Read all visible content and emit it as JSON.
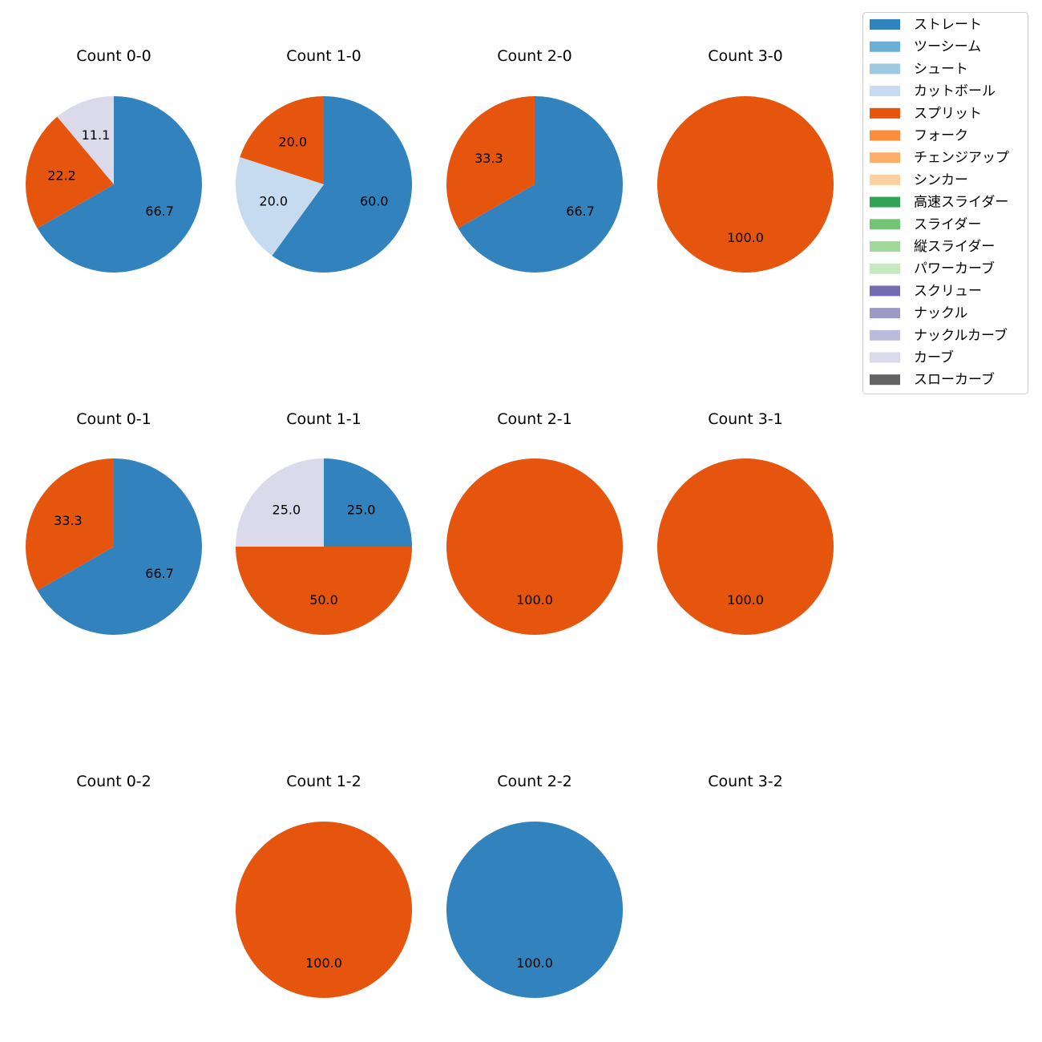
{
  "chart_data": {
    "type": "pie",
    "start_angle_deg": 90,
    "direction": "clockwise",
    "label_format": "percent_one_decimal",
    "legend": {
      "placement": "top-right",
      "entries": [
        {
          "name": "ストレート",
          "color": "#3182bd"
        },
        {
          "name": "ツーシーム",
          "color": "#6baed6"
        },
        {
          "name": "シュート",
          "color": "#9ecae1"
        },
        {
          "name": "カットボール",
          "color": "#c6dbef"
        },
        {
          "name": "スプリット",
          "color": "#e6550d"
        },
        {
          "name": "フォーク",
          "color": "#fd8d3c"
        },
        {
          "name": "チェンジアップ",
          "color": "#fdae6b"
        },
        {
          "name": "シンカー",
          "color": "#fdd0a2"
        },
        {
          "name": "高速スライダー",
          "color": "#31a354"
        },
        {
          "name": "スライダー",
          "color": "#74c476"
        },
        {
          "name": "縦スライダー",
          "color": "#a1d99b"
        },
        {
          "name": "パワーカーブ",
          "color": "#c7e9c0"
        },
        {
          "name": "スクリュー",
          "color": "#756bb1"
        },
        {
          "name": "ナックル",
          "color": "#9e9ac8"
        },
        {
          "name": "ナックルカーブ",
          "color": "#bcbddc"
        },
        {
          "name": "カーブ",
          "color": "#dadaeb"
        },
        {
          "name": "スローカーブ",
          "color": "#636363"
        }
      ]
    },
    "panels": [
      {
        "title": "Count 0-0",
        "slices": [
          {
            "pitch": "ストレート",
            "value": 66.7
          },
          {
            "pitch": "スプリット",
            "value": 22.2
          },
          {
            "pitch": "カーブ",
            "value": 11.1
          }
        ]
      },
      {
        "title": "Count 1-0",
        "slices": [
          {
            "pitch": "ストレート",
            "value": 60.0
          },
          {
            "pitch": "カットボール",
            "value": 20.0
          },
          {
            "pitch": "スプリット",
            "value": 20.0
          }
        ]
      },
      {
        "title": "Count 2-0",
        "slices": [
          {
            "pitch": "ストレート",
            "value": 66.7
          },
          {
            "pitch": "スプリット",
            "value": 33.3
          }
        ]
      },
      {
        "title": "Count 3-0",
        "slices": [
          {
            "pitch": "スプリット",
            "value": 100.0
          }
        ]
      },
      {
        "title": "Count 0-1",
        "slices": [
          {
            "pitch": "ストレート",
            "value": 66.7
          },
          {
            "pitch": "スプリット",
            "value": 33.3
          }
        ]
      },
      {
        "title": "Count 1-1",
        "slices": [
          {
            "pitch": "ストレート",
            "value": 25.0
          },
          {
            "pitch": "スプリット",
            "value": 50.0
          },
          {
            "pitch": "カーブ",
            "value": 25.0
          }
        ]
      },
      {
        "title": "Count 2-1",
        "slices": [
          {
            "pitch": "スプリット",
            "value": 100.0
          }
        ]
      },
      {
        "title": "Count 3-1",
        "slices": [
          {
            "pitch": "スプリット",
            "value": 100.0
          }
        ]
      },
      {
        "title": "Count 0-2",
        "slices": []
      },
      {
        "title": "Count 1-2",
        "slices": [
          {
            "pitch": "スプリット",
            "value": 100.0
          }
        ]
      },
      {
        "title": "Count 2-2",
        "slices": [
          {
            "pitch": "ストレート",
            "value": 100.0
          }
        ]
      },
      {
        "title": "Count 3-2",
        "slices": []
      }
    ]
  }
}
